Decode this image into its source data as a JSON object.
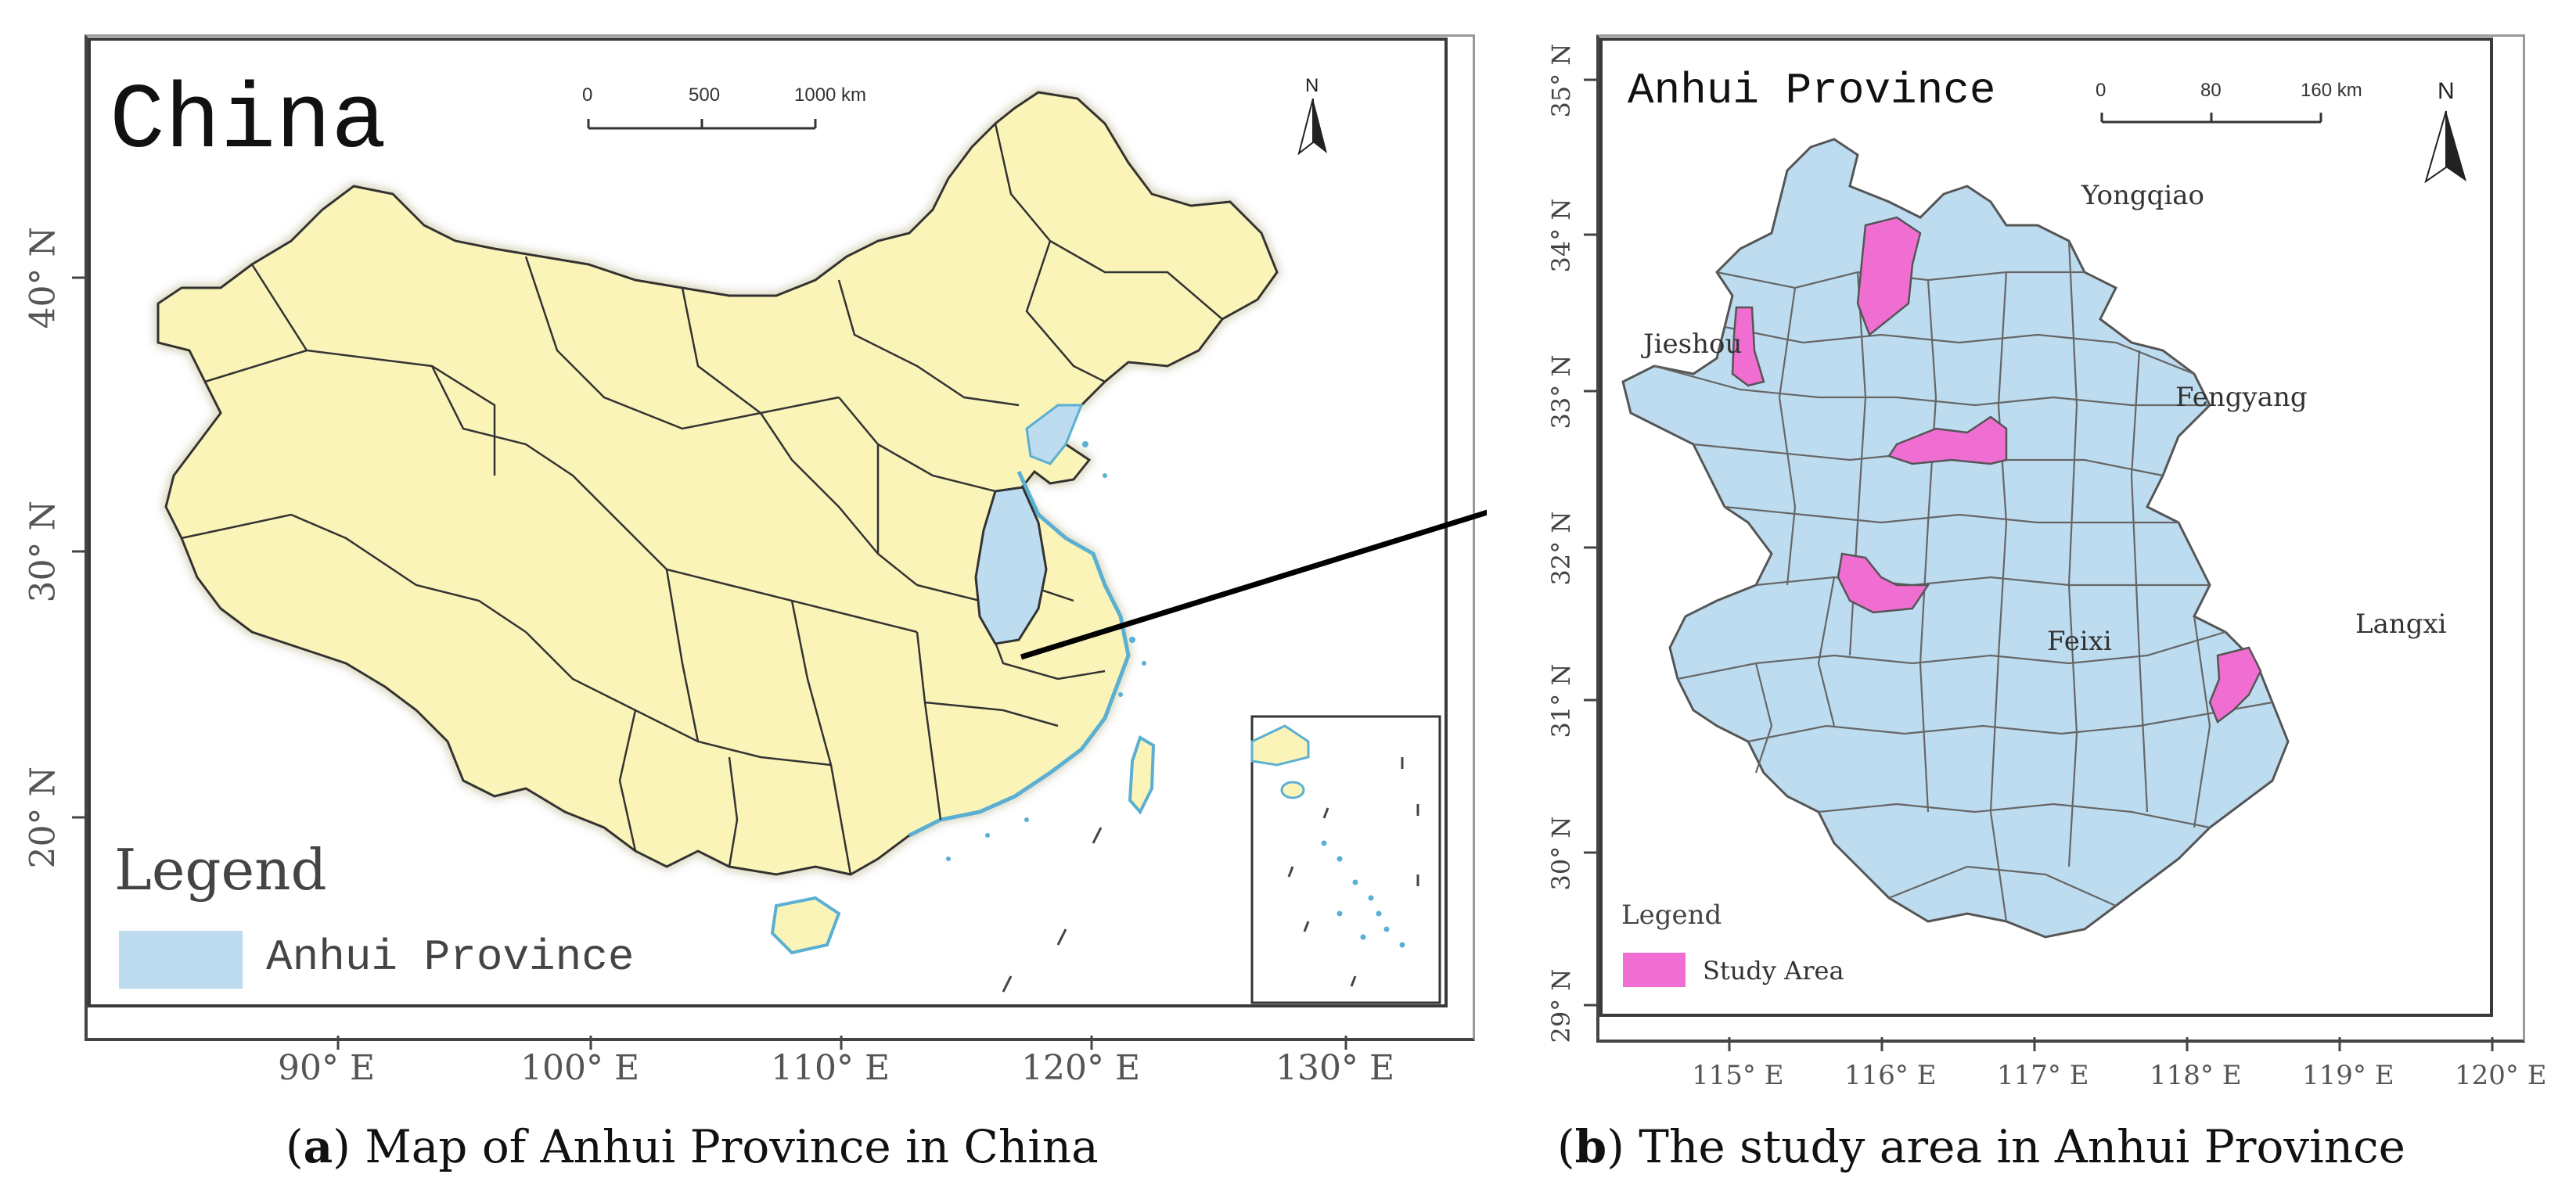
{
  "panel_a": {
    "title": "China",
    "scalebar": {
      "ticks": [
        "0",
        "500",
        "1000 km"
      ]
    },
    "north": "N",
    "legend_title": "Legend",
    "legend_item": "Anhui Province",
    "x_ticks": [
      "90° E",
      "100° E",
      "110° E",
      "120° E",
      "130° E"
    ],
    "y_ticks": [
      "40° N",
      "30° N",
      "20° N"
    ],
    "caption_letter": "a",
    "caption_text": "Map of Anhui Province in China",
    "colors": {
      "land": "#fbf4b9",
      "anhui": "#bedcf0",
      "coast": "#5aafd2"
    }
  },
  "panel_b": {
    "title": "Anhui Province",
    "scalebar": {
      "ticks": [
        "0",
        "80",
        "160 km"
      ]
    },
    "north": "N",
    "labels": {
      "yongqiao": "Yongqiao",
      "jieshou": "Jieshou",
      "fengyang": "Fengyang",
      "feixi": "Feixi",
      "langxi": "Langxi"
    },
    "legend_title": "Legend",
    "legend_item": "Study Area",
    "x_ticks": [
      "115° E",
      "116° E",
      "117° E",
      "118° E",
      "119° E",
      "120° E"
    ],
    "y_ticks": [
      "35° N",
      "34° N",
      "33° N",
      "32° N",
      "31° N",
      "30° N",
      "29° N"
    ],
    "caption_letter": "b",
    "caption_text": "The study area in Anhui Province",
    "colors": {
      "province": "#bedcf0",
      "study": "#f06ed2",
      "border": "#555555"
    }
  }
}
